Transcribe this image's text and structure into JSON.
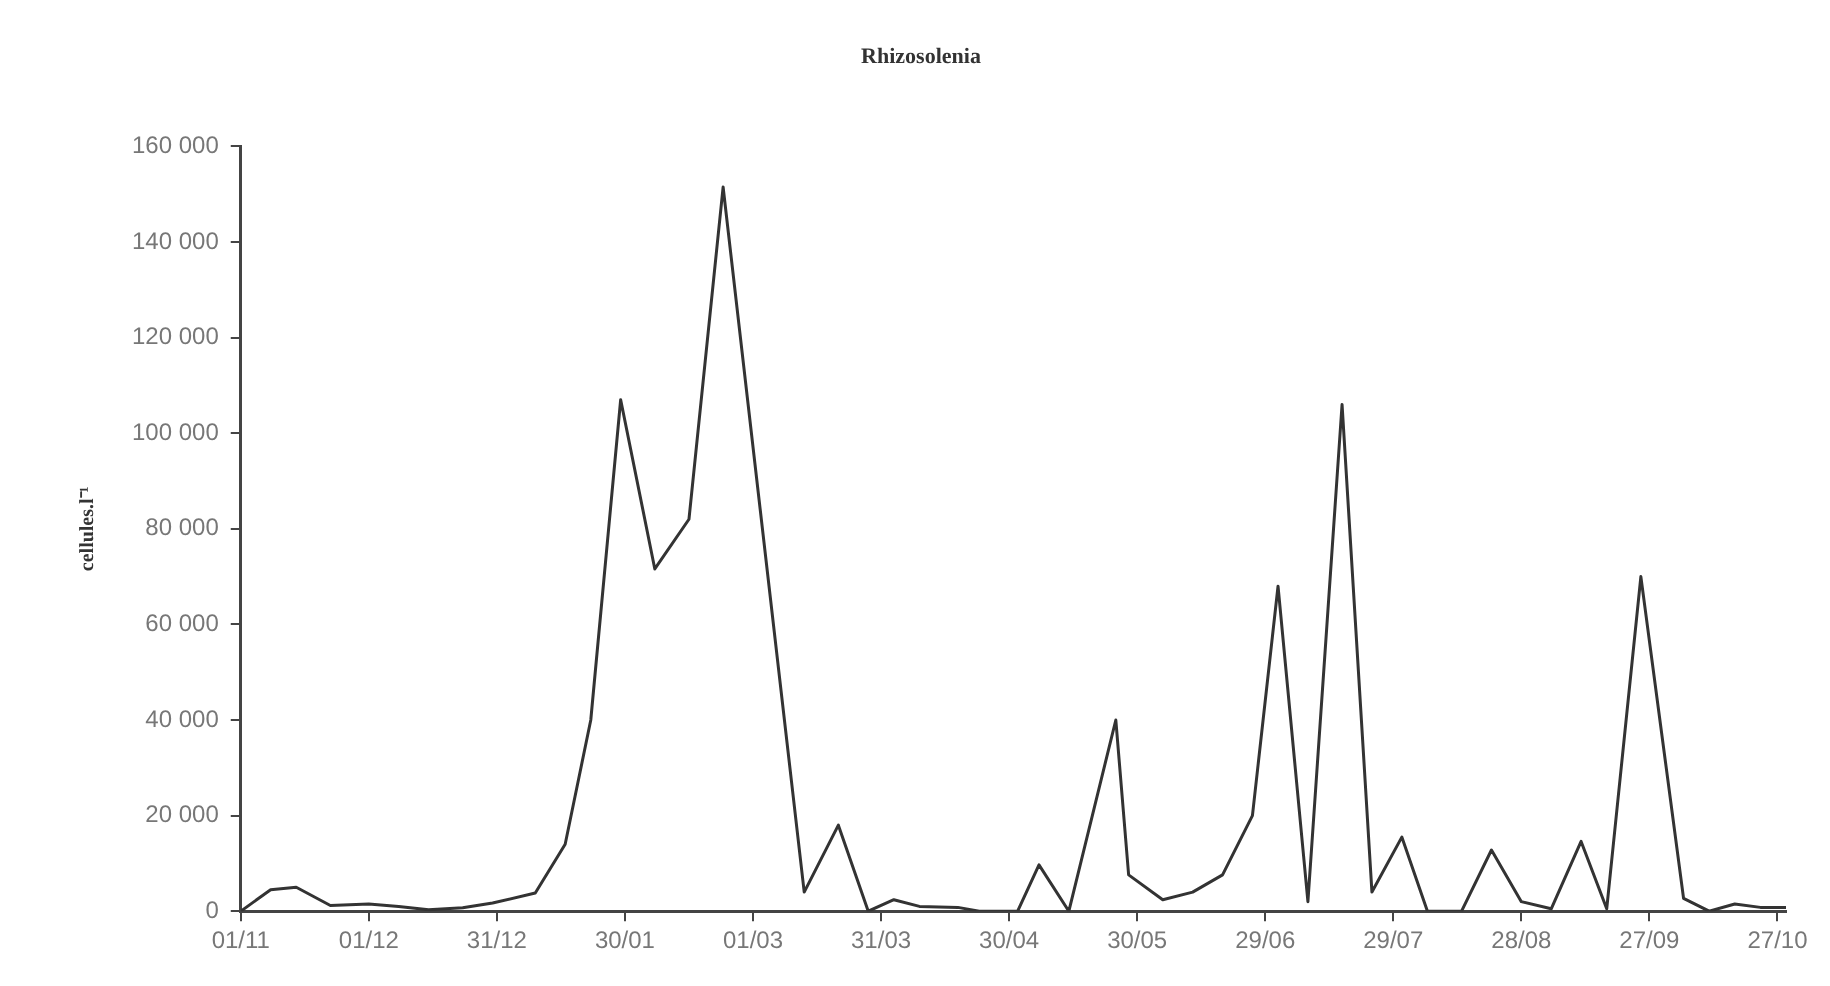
{
  "chart_data": {
    "type": "line",
    "title": "Rhizosolenia",
    "ylabel": "cellules.l⁻¹",
    "x": [
      "2001-11-01",
      "2001-11-08",
      "2001-11-14",
      "2001-11-22",
      "2001-12-01",
      "2001-12-08",
      "2001-12-15",
      "2001-12-23",
      "2001-12-30",
      "2002-01-09",
      "2002-01-16",
      "2002-01-22",
      "2002-01-29",
      "2002-02-06",
      "2002-02-14",
      "2002-02-22",
      "2002-03-13",
      "2002-03-21",
      "2002-03-28",
      "2002-04-03",
      "2002-04-09",
      "2002-04-18",
      "2002-04-23",
      "2002-05-02",
      "2002-05-07",
      "2002-05-14",
      "2002-05-25",
      "2002-05-28",
      "2002-06-05",
      "2002-06-12",
      "2002-06-19",
      "2002-06-26",
      "2002-07-02",
      "2002-07-09",
      "2002-07-17",
      "2002-07-24",
      "2002-07-31",
      "2002-08-06",
      "2002-08-14",
      "2002-08-21",
      "2002-08-28",
      "2002-09-04",
      "2002-09-11",
      "2002-09-17",
      "2002-09-25",
      "2002-10-05",
      "2002-10-11",
      "2002-10-17",
      "2002-10-23",
      "2002-10-29"
    ],
    "series": [
      {
        "color": "#333333",
        "values": [
          0,
          4500,
          5000,
          1200,
          1500,
          1000,
          300,
          700,
          1700,
          3800,
          14000,
          40000,
          107000,
          71600,
          82000,
          151500,
          4000,
          18000,
          0,
          2400,
          1000,
          800,
          0,
          0,
          9700,
          0,
          40000,
          7600,
          2400,
          4000,
          7600,
          20000,
          68000,
          2000,
          106000,
          4000,
          15500,
          0,
          0,
          12800,
          2000,
          500,
          14600,
          500,
          70000,
          2700,
          0,
          1500,
          800,
          800
        ]
      }
    ],
    "xlim": [
      "2001-11-01",
      "2002-10-29"
    ],
    "xticks": [
      {
        "value": "2001-11-01",
        "label": "01/11"
      },
      {
        "value": "2001-12-01",
        "label": "01/12"
      },
      {
        "value": "2001-12-31",
        "label": "31/12"
      },
      {
        "value": "2002-01-30",
        "label": "30/01"
      },
      {
        "value": "2002-03-01",
        "label": "01/03"
      },
      {
        "value": "2002-03-31",
        "label": "31/03"
      },
      {
        "value": "2002-04-30",
        "label": "30/04"
      },
      {
        "value": "2002-05-30",
        "label": "30/05"
      },
      {
        "value": "2002-06-29",
        "label": "29/06"
      },
      {
        "value": "2002-07-29",
        "label": "29/07"
      },
      {
        "value": "2002-08-28",
        "label": "28/08"
      },
      {
        "value": "2002-09-27",
        "label": "27/09"
      },
      {
        "value": "2002-10-27",
        "label": "27/10"
      }
    ],
    "ylim": [
      0,
      160000
    ],
    "yticks": [
      {
        "value": 0,
        "label": "0"
      },
      {
        "value": 20000,
        "label": "20 000"
      },
      {
        "value": 40000,
        "label": "40 000"
      },
      {
        "value": 60000,
        "label": "60 000"
      },
      {
        "value": 80000,
        "label": "80 000"
      },
      {
        "value": 100000,
        "label": "100 000"
      },
      {
        "value": 120000,
        "label": "120 000"
      },
      {
        "value": 140000,
        "label": "140 000"
      },
      {
        "value": 160000,
        "label": "160 000"
      }
    ],
    "grid": false,
    "marker": "none"
  }
}
